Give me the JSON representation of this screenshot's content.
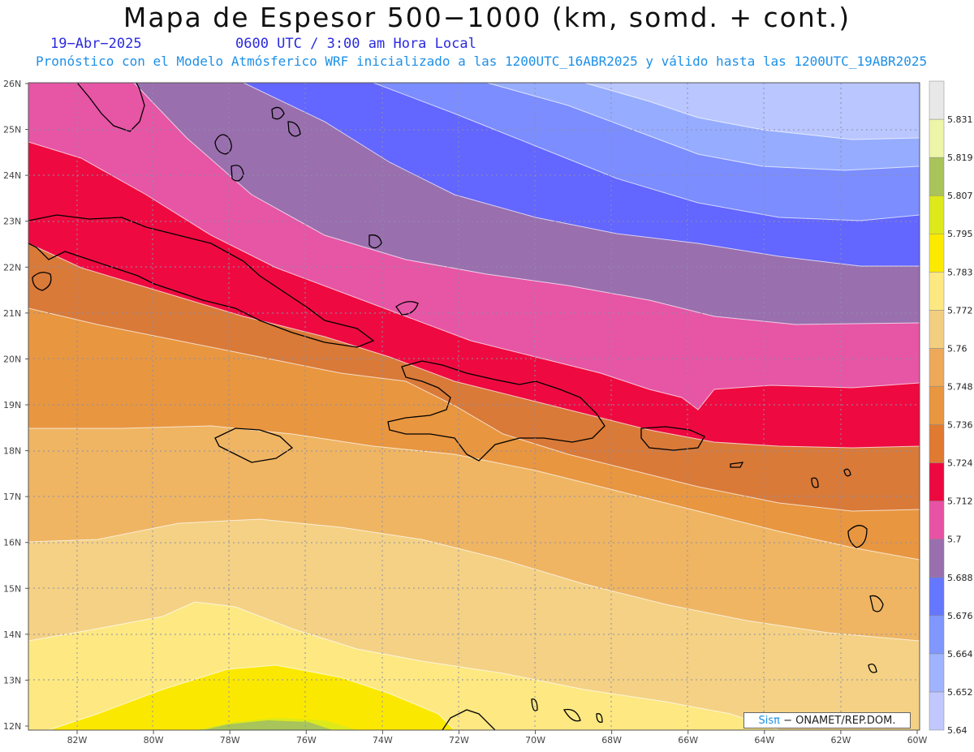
{
  "header": {
    "title": "Mapa de Espesor 500−1000 (km, somd. + cont.)",
    "date": "19−Abr−2025",
    "time": "0600 UTC / 3:00 am Hora Local",
    "subtitle": "Pronóstico con el Modelo Atmósferico WRF inicializado a las 1200UTC_16ABR2025 y válido hasta las  1200UTC_19ABR2025"
  },
  "map": {
    "lat_labels": [
      "26N",
      "25N",
      "24N",
      "23N",
      "22N",
      "21N",
      "20N",
      "19N",
      "18N",
      "17N",
      "16N",
      "15N",
      "14N",
      "13N",
      "12N"
    ],
    "lon_labels": [
      "82W",
      "80W",
      "78W",
      "76W",
      "74W",
      "72W",
      "70W",
      "68W",
      "66W",
      "64W",
      "62W",
      "60W"
    ],
    "grid_lines": "dotted"
  },
  "colorbar": {
    "labels": [
      "5.831",
      "5.819",
      "5.807",
      "5.795",
      "5.783",
      "5.772",
      "5.76",
      "5.748",
      "5.736",
      "5.724",
      "5.712",
      "5.7",
      "5.688",
      "5.676",
      "5.664",
      "5.652",
      "5.64"
    ],
    "colors": [
      "#c0c8ff",
      "#9fb3ff",
      "#7f97ff",
      "#6677ff",
      "#9a6fae",
      "#e852a5",
      "#ee0840",
      "#e07a30",
      "#e89640",
      "#eda85a",
      "#f2cf80",
      "#fde882",
      "#fbea00",
      "#dde91a",
      "#a8c45a",
      "#ecf5a8",
      "#e8e8e8"
    ]
  },
  "credit": {
    "sis": "Sisπ",
    "org": "− ONAMET/REP.DOM."
  },
  "colors": {
    "band_1_top": "#b9c6ff",
    "band_2": "#96acff",
    "band_3": "#7b8dff",
    "band_4": "#6366ff",
    "band_5": "#9a6fae",
    "band_6": "#e755a5",
    "band_7": "#ee0a40",
    "band_8": "#d97a39",
    "band_9": "#e89640",
    "band_10": "#efb563",
    "band_11": "#f4d184",
    "band_12": "#fde882",
    "band_13": "#fbe800",
    "band_14": "#dde91a",
    "band_15": "#a8c45a"
  }
}
